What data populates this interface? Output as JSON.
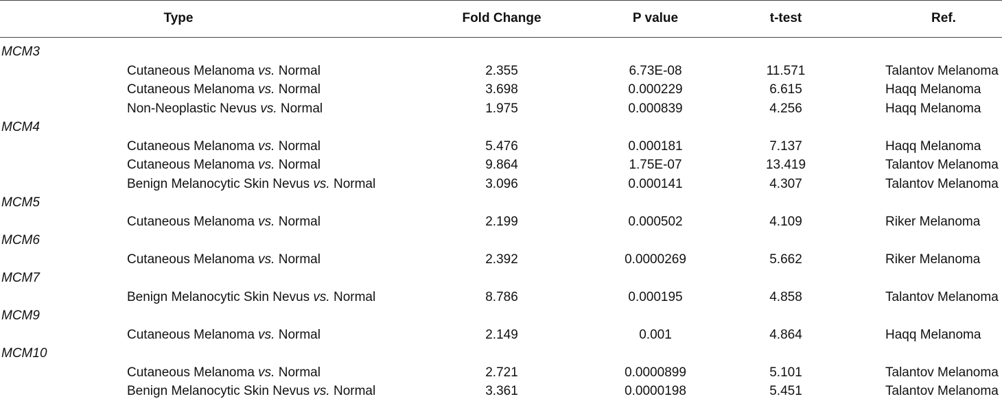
{
  "header": {
    "type": "Type",
    "fold_change": "Fold Change",
    "p_value": "P value",
    "t_test": "t-test",
    "ref": "Ref."
  },
  "vs_text": "vs.",
  "groups": [
    {
      "gene": "MCM3",
      "rows": [
        {
          "type_pre": "Cutaneous Melanoma",
          "type_post": "Normal",
          "fold": "2.355",
          "p": "6.73E-08",
          "t": "11.571",
          "ref": "Talantov Melanoma"
        },
        {
          "type_pre": "Cutaneous Melanoma",
          "type_post": "Normal",
          "fold": "3.698",
          "p": "0.000229",
          "t": "6.615",
          "ref": "Haqq Melanoma"
        },
        {
          "type_pre": "Non-Neoplastic Nevus",
          "type_post": "Normal",
          "fold": "1.975",
          "p": "0.000839",
          "t": "4.256",
          "ref": "Haqq Melanoma"
        }
      ]
    },
    {
      "gene": "MCM4",
      "rows": [
        {
          "type_pre": "Cutaneous Melanoma",
          "type_post": "Normal",
          "fold": "5.476",
          "p": "0.000181",
          "t": "7.137",
          "ref": "Haqq Melanoma"
        },
        {
          "type_pre": "Cutaneous Melanoma",
          "type_post": "Normal",
          "fold": "9.864",
          "p": "1.75E-07",
          "t": "13.419",
          "ref": "Talantov Melanoma"
        },
        {
          "type_pre": "Benign Melanocytic Skin Nevus",
          "type_post": "Normal",
          "fold": "3.096",
          "p": "0.000141",
          "t": "4.307",
          "ref": "Talantov Melanoma"
        }
      ]
    },
    {
      "gene": "MCM5",
      "rows": [
        {
          "type_pre": "Cutaneous Melanoma",
          "type_post": "Normal",
          "fold": "2.199",
          "p": "0.000502",
          "t": "4.109",
          "ref": "Riker Melanoma"
        }
      ]
    },
    {
      "gene": "MCM6",
      "rows": [
        {
          "type_pre": "Cutaneous Melanoma",
          "type_post": "Normal",
          "fold": "2.392",
          "p": "0.0000269",
          "t": "5.662",
          "ref": "Riker Melanoma"
        }
      ]
    },
    {
      "gene": "MCM7",
      "rows": [
        {
          "type_pre": "Benign Melanocytic Skin Nevus",
          "type_post": "Normal",
          "fold": "8.786",
          "p": "0.000195",
          "t": "4.858",
          "ref": "Talantov Melanoma"
        }
      ]
    },
    {
      "gene": "MCM9",
      "rows": [
        {
          "type_pre": "Cutaneous Melanoma",
          "type_post": "Normal",
          "fold": "2.149",
          "p": "0.001",
          "t": "4.864",
          "ref": "Haqq Melanoma"
        }
      ]
    },
    {
      "gene": "MCM10",
      "rows": [
        {
          "type_pre": "Cutaneous Melanoma",
          "type_post": "Normal",
          "fold": "2.721",
          "p": "0.0000899",
          "t": "5.101",
          "ref": "Talantov Melanoma"
        },
        {
          "type_pre": "Benign Melanocytic Skin Nevus",
          "type_post": "Normal",
          "fold": "3.361",
          "p": "0.0000198",
          "t": "5.451",
          "ref": "Talantov Melanoma"
        }
      ]
    }
  ]
}
